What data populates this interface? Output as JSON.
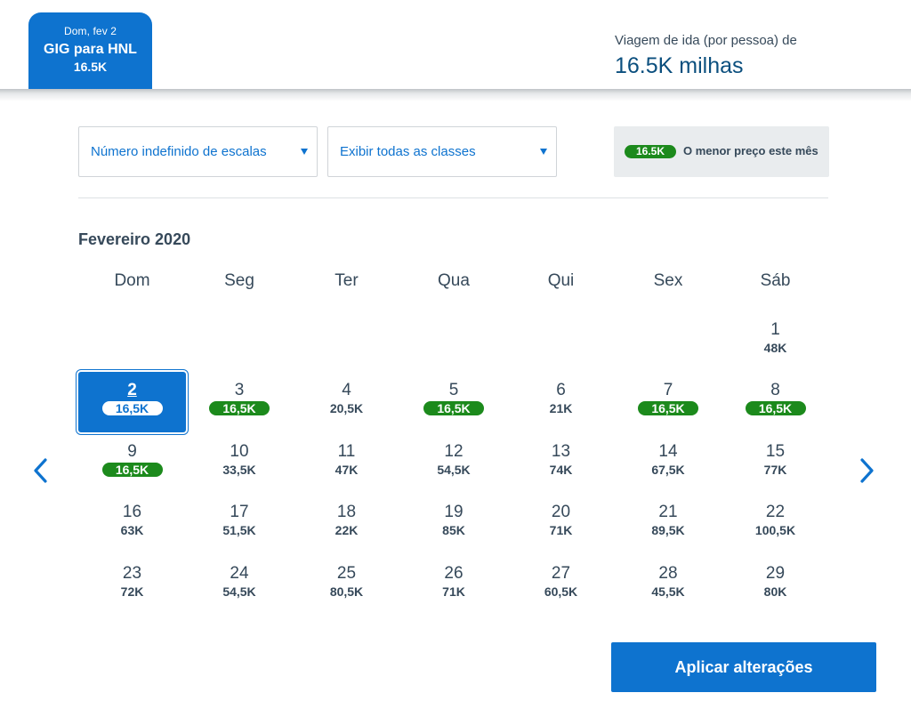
{
  "header": {
    "trip_tab": {
      "date": "Dom, fev 2",
      "route": "GIG para HNL",
      "price": "16.5K"
    },
    "fare_label": "Viagem de ida (por pessoa) de",
    "fare_value": "16.5K milhas"
  },
  "filters": {
    "stops": "Número indefinido de escalas",
    "classes": "Exibir todas as classes",
    "lowest_price_badge": "16.5K",
    "lowest_price_label": "O menor preço este mês"
  },
  "calendar": {
    "month": "Fevereiro 2020",
    "weekdays": [
      "Dom",
      "Seg",
      "Ter",
      "Qua",
      "Qui",
      "Sex",
      "Sáb"
    ],
    "days": [
      {
        "num": "1",
        "price": "48K"
      },
      {
        "num": "2",
        "price": "16,5K",
        "cheap": true,
        "selected": true
      },
      {
        "num": "3",
        "price": "16,5K",
        "cheap": true
      },
      {
        "num": "4",
        "price": "20,5K"
      },
      {
        "num": "5",
        "price": "16,5K",
        "cheap": true
      },
      {
        "num": "6",
        "price": "21K"
      },
      {
        "num": "7",
        "price": "16,5K",
        "cheap": true
      },
      {
        "num": "8",
        "price": "16,5K",
        "cheap": true
      },
      {
        "num": "9",
        "price": "16,5K",
        "cheap": true
      },
      {
        "num": "10",
        "price": "33,5K"
      },
      {
        "num": "11",
        "price": "47K"
      },
      {
        "num": "12",
        "price": "54,5K"
      },
      {
        "num": "13",
        "price": "74K"
      },
      {
        "num": "14",
        "price": "67,5K"
      },
      {
        "num": "15",
        "price": "77K"
      },
      {
        "num": "16",
        "price": "63K"
      },
      {
        "num": "17",
        "price": "51,5K"
      },
      {
        "num": "18",
        "price": "22K"
      },
      {
        "num": "19",
        "price": "85K"
      },
      {
        "num": "20",
        "price": "71K"
      },
      {
        "num": "21",
        "price": "89,5K"
      },
      {
        "num": "22",
        "price": "100,5K"
      },
      {
        "num": "23",
        "price": "72K"
      },
      {
        "num": "24",
        "price": "54,5K"
      },
      {
        "num": "25",
        "price": "80,5K"
      },
      {
        "num": "26",
        "price": "71K"
      },
      {
        "num": "27",
        "price": "60,5K"
      },
      {
        "num": "28",
        "price": "45,5K"
      },
      {
        "num": "29",
        "price": "80K"
      }
    ],
    "first_weekday_index": 6
  },
  "nav": {
    "prev_icon": "chevron-left-icon",
    "next_icon": "chevron-right-icon"
  },
  "apply_label": "Aplicar alterações",
  "colors": {
    "primary": "#0e73cf",
    "cheap_badge": "#1c8a1c",
    "text": "#36495a",
    "fare_value": "#0b4f7e"
  }
}
